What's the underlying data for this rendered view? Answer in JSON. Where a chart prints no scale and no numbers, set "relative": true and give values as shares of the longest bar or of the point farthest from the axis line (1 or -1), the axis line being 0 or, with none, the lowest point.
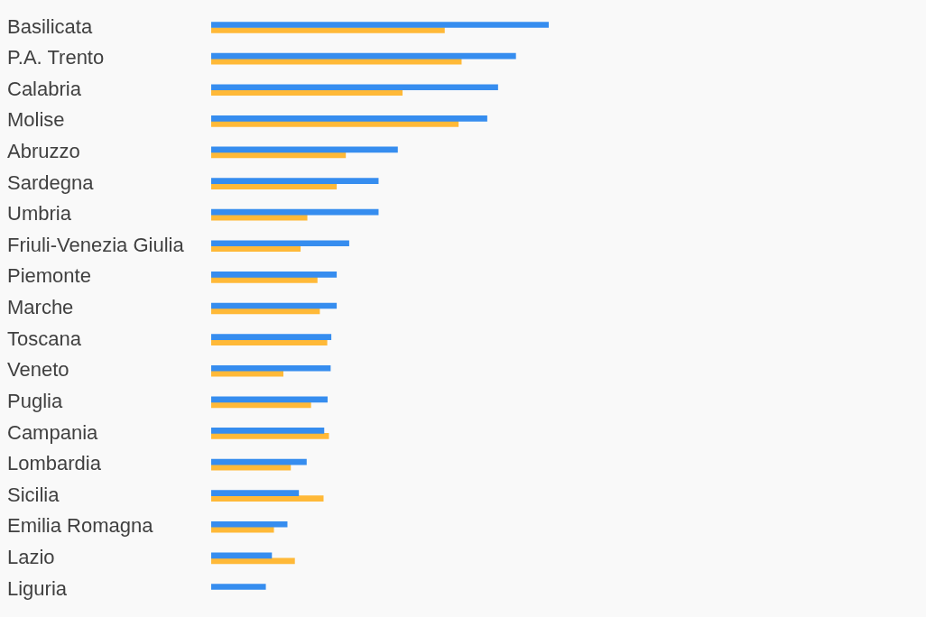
{
  "chart_data": {
    "type": "bar",
    "orientation": "horizontal",
    "relative": true,
    "categories": [
      "Basilicata",
      "P.A. Trento",
      "Calabria",
      "Molise",
      "Abruzzo",
      "Sardegna",
      "Umbria",
      "Friuli-Venezia Giulia",
      "Piemonte",
      "Marche",
      "Toscana",
      "Veneto",
      "Puglia",
      "Campania",
      "Lombardia",
      "Sicilia",
      "Emilia Romagna",
      "Lazio",
      "Liguria"
    ],
    "series": [
      {
        "color": "#368def",
        "values": [
          1.0,
          0.902,
          0.849,
          0.817,
          0.552,
          0.495,
          0.495,
          0.408,
          0.371,
          0.371,
          0.355,
          0.353,
          0.344,
          0.334,
          0.282,
          0.259,
          0.225,
          0.179,
          0.161
        ]
      },
      {
        "color": "#ffb938",
        "values": [
          0.691,
          0.741,
          0.566,
          0.732,
          0.398,
          0.371,
          0.284,
          0.264,
          0.314,
          0.321,
          0.343,
          0.213,
          0.295,
          0.348,
          0.235,
          0.332,
          0.185,
          0.247,
          null
        ]
      }
    ]
  }
}
